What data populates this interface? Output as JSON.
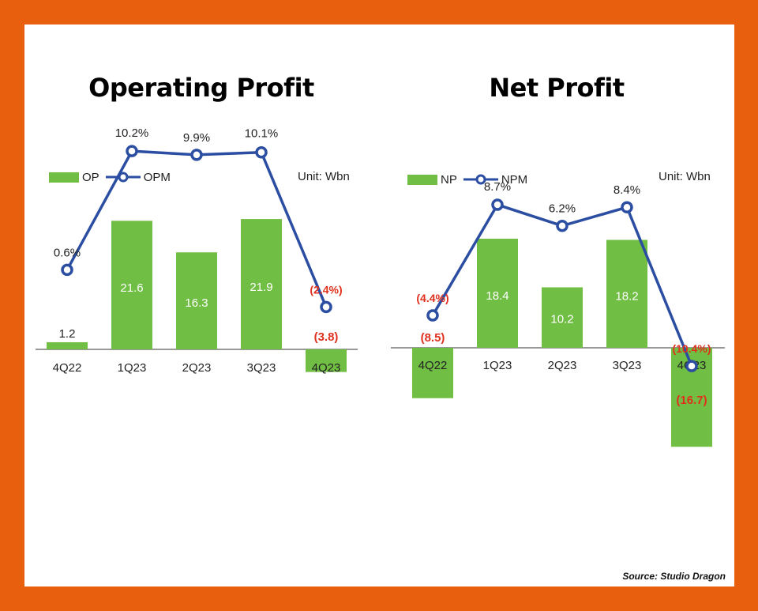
{
  "source_label": "Source: Studio Dragon",
  "colors": {
    "frame": "#e8600d",
    "bar": "#70bf44",
    "line": "#2b4ea2",
    "negative": "#e0301e",
    "label": "#222222"
  },
  "chart_data": [
    {
      "type": "bar",
      "title": "Operating Profit",
      "unit_label": "Unit: Wbn",
      "categories": [
        "4Q22",
        "1Q23",
        "2Q23",
        "3Q23",
        "4Q23"
      ],
      "series": [
        {
          "name": "OP",
          "type": "bar",
          "values": [
            1.2,
            21.6,
            16.3,
            21.9,
            -3.8
          ],
          "labels": [
            "1.2",
            "21.6",
            "16.3",
            "21.9",
            "(3.8)"
          ]
        },
        {
          "name": "OPM",
          "type": "line",
          "values": [
            0.6,
            10.2,
            9.9,
            10.1,
            -2.4
          ],
          "labels": [
            "0.6%",
            "10.2%",
            "9.9%",
            "10.1%",
            "(2.4%)"
          ]
        }
      ]
    },
    {
      "type": "bar",
      "title": "Net Profit",
      "unit_label": "Unit: Wbn",
      "categories": [
        "4Q22",
        "1Q23",
        "2Q23",
        "3Q23",
        "4Q23"
      ],
      "series": [
        {
          "name": "NP",
          "type": "bar",
          "values": [
            -8.5,
            18.4,
            10.2,
            18.2,
            -16.7
          ],
          "labels": [
            "(8.5)",
            "18.4",
            "10.2",
            "18.2",
            "(16.7)"
          ]
        },
        {
          "name": "NPM",
          "type": "line",
          "values": [
            -4.4,
            8.7,
            6.2,
            8.4,
            -10.4
          ],
          "labels": [
            "(4.4%)",
            "8.7%",
            "6.2%",
            "8.4%",
            "(10.4%)"
          ]
        }
      ]
    }
  ]
}
